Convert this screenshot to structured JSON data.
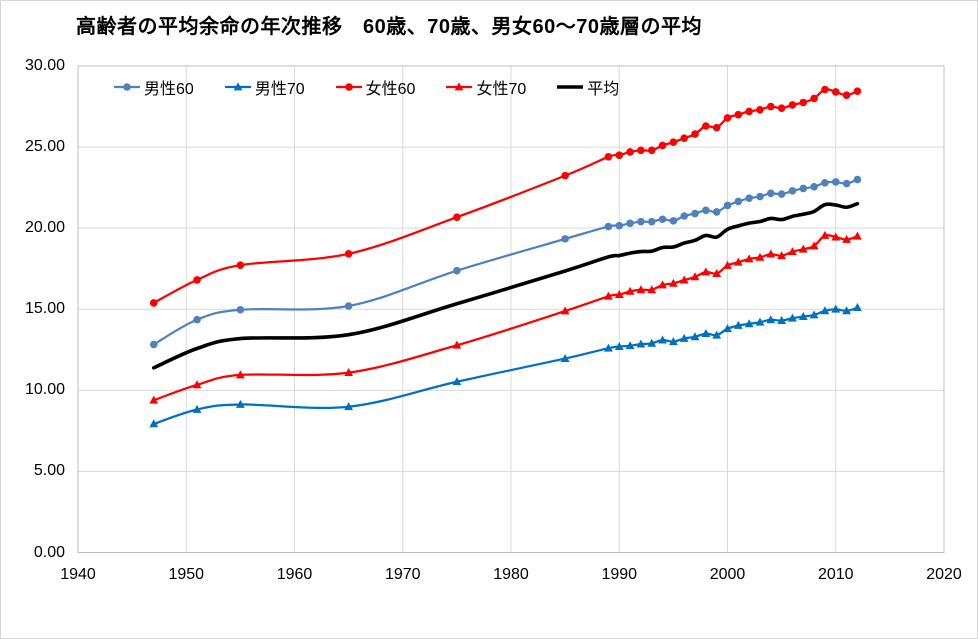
{
  "chart": {
    "title": "高齢者の平均余命の年次推移　60歳、70歳、男女60～70歳層の平均"
  },
  "chart_data": {
    "type": "line",
    "title": "高齢者の平均余命の年次推移　60歳、70歳、男女60～70歳層の平均",
    "xlabel": "",
    "ylabel": "",
    "xlim": [
      1940,
      2020
    ],
    "ylim": [
      0,
      30
    ],
    "x_ticks": [
      1940,
      1950,
      1960,
      1970,
      1980,
      1990,
      2000,
      2010,
      2020
    ],
    "y_ticks": [
      "0.00",
      "5.00",
      "10.00",
      "15.00",
      "20.00",
      "25.00",
      "30.00"
    ],
    "grid": true,
    "gridline_color": "#d9d9d9",
    "axis_color": "#bfbfbf",
    "legend_position": "top-inside",
    "smoothed": true,
    "x": [
      1947,
      1951,
      1955,
      1965,
      1975,
      1985,
      1989,
      1990,
      1991,
      1992,
      1993,
      1994,
      1995,
      1996,
      1997,
      1998,
      1999,
      2000,
      2001,
      2002,
      2003,
      2004,
      2005,
      2006,
      2007,
      2008,
      2009,
      2010,
      2011,
      2012
    ],
    "series": [
      {
        "name": "男性60",
        "id": "male-60",
        "color": "#4F81BD",
        "marker": "circle",
        "line_width": 2.25,
        "values": [
          12.83,
          14.36,
          14.97,
          15.2,
          17.38,
          19.34,
          20.1,
          20.15,
          20.3,
          20.4,
          20.4,
          20.55,
          20.45,
          20.75,
          20.9,
          21.1,
          21.0,
          21.4,
          21.65,
          21.85,
          21.95,
          22.15,
          22.1,
          22.3,
          22.45,
          22.55,
          22.8,
          22.85,
          22.75,
          23.0
        ]
      },
      {
        "name": "男性70",
        "id": "male-70",
        "color": "#0070C0",
        "marker": "triangle",
        "line_width": 2.25,
        "values": [
          7.93,
          8.82,
          9.13,
          8.99,
          10.53,
          11.96,
          12.6,
          12.7,
          12.75,
          12.85,
          12.9,
          13.1,
          13.0,
          13.2,
          13.3,
          13.5,
          13.4,
          13.8,
          14.0,
          14.1,
          14.2,
          14.35,
          14.3,
          14.45,
          14.55,
          14.65,
          14.9,
          15.0,
          14.9,
          15.1
        ]
      },
      {
        "name": "女性60",
        "id": "female-60",
        "color": "#FF0000",
        "marker": "circle",
        "line_width": 2.25,
        "values": [
          15.39,
          16.81,
          17.72,
          18.42,
          20.68,
          23.24,
          24.4,
          24.5,
          24.7,
          24.8,
          24.8,
          25.1,
          25.3,
          25.55,
          25.8,
          26.3,
          26.2,
          26.8,
          27.0,
          27.2,
          27.3,
          27.5,
          27.4,
          27.6,
          27.75,
          28.0,
          28.55,
          28.4,
          28.2,
          28.45
        ]
      },
      {
        "name": "女性70",
        "id": "female-70",
        "color": "#FF0000",
        "marker": "triangle",
        "line_width": 2.25,
        "values": [
          9.39,
          10.34,
          10.95,
          11.09,
          12.78,
          14.89,
          15.8,
          15.9,
          16.1,
          16.2,
          16.2,
          16.5,
          16.6,
          16.8,
          17.0,
          17.3,
          17.2,
          17.7,
          17.9,
          18.1,
          18.2,
          18.4,
          18.3,
          18.55,
          18.7,
          18.9,
          19.55,
          19.45,
          19.3,
          19.5
        ]
      },
      {
        "name": "平均",
        "id": "average",
        "color": "#000000",
        "marker": "none",
        "line_width": 3.6,
        "values": [
          11.39,
          12.58,
          13.19,
          13.43,
          15.34,
          17.36,
          18.23,
          18.31,
          18.46,
          18.56,
          18.58,
          18.81,
          18.84,
          19.08,
          19.25,
          19.55,
          19.45,
          19.93,
          20.14,
          20.31,
          20.41,
          20.6,
          20.53,
          20.73,
          20.86,
          21.03,
          21.45,
          21.43,
          21.29,
          21.51
        ]
      }
    ]
  }
}
